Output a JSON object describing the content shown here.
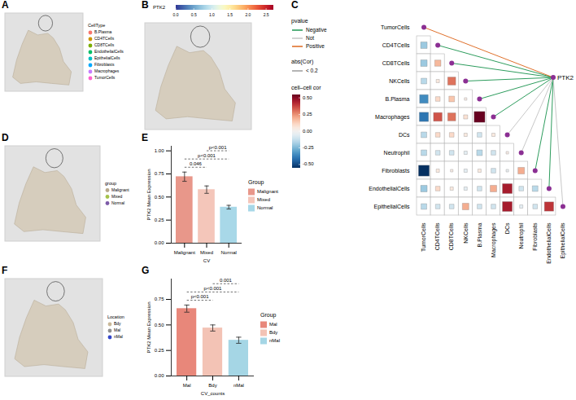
{
  "chart_data": [
    {
      "panel": "A",
      "type": "spatial",
      "legend_title": "CellType",
      "legend": "right",
      "categories": [
        "B.Plasma",
        "CD4TCells",
        "CD8TCells",
        "EndothelialCells",
        "EpithelialCells",
        "Fibroblasts",
        "Macrophages",
        "TumorCells"
      ],
      "colors": [
        "#F8766D",
        "#CD9600",
        "#7CAE00",
        "#00BE67",
        "#00BFC4",
        "#00A9FF",
        "#C77CFF",
        "#FF61CC"
      ]
    },
    {
      "panel": "B",
      "type": "spatial",
      "legend": "top",
      "colorbar_title": "PTK2",
      "colorbar_range": [
        0,
        2.7
      ],
      "colorbar_ticks": [
        {
          "value": 0,
          "label": "0.0"
        },
        {
          "value": 0.5,
          "label": "0.5"
        },
        {
          "value": 1,
          "label": "1.0"
        },
        {
          "value": 1.5,
          "label": "1.5"
        },
        {
          "value": 2,
          "label": "2.0"
        },
        {
          "value": 2.5,
          "label": "2.5"
        }
      ]
    },
    {
      "panel": "C",
      "type": "heatmap",
      "legend": "left",
      "target": "PTK2",
      "color": "#8b2f93",
      "rows": [
        "TumorCells",
        "CD4TCells",
        "CD8TCells",
        "NKCells",
        "B.Plasma",
        "Macrophages",
        "DCs",
        "Neutrophil",
        "Fibroblasts",
        "EndothelialCells",
        "EpithelialCells"
      ],
      "columns": [
        "TumorCells",
        "CD4TCells",
        "CD8TCells",
        "NKCells",
        "B.Plasma",
        "Macrophages",
        "DCs",
        "Neutrophil",
        "Fibroblasts",
        "EndothelialCells",
        "EpithelialCells"
      ],
      "cells": [
        [],
        [
          -0.2
        ],
        [
          -0.2,
          0.18
        ],
        [
          -0.15,
          0.05,
          0.3
        ],
        [
          -0.35,
          0.1,
          0.15,
          0.03
        ],
        [
          -0.4,
          0.35,
          0.3,
          0.08,
          0.55
        ],
        [
          -0.15,
          0.1,
          0.1,
          0.05,
          -0.1,
          0.05
        ],
        [
          -0.15,
          -0.1,
          -0.1,
          -0.05,
          -0.15,
          -0.1,
          0.03
        ],
        [
          -0.55,
          0.05,
          0.03,
          -0.05,
          0.05,
          -0.1,
          -0.03,
          0.2
        ],
        [
          -0.2,
          0.1,
          0.05,
          -0.05,
          -0.1,
          0.2,
          0.45,
          -0.1,
          -0.15
        ],
        [
          -0.15,
          -0.1,
          -0.1,
          0.2,
          -0.1,
          -0.1,
          0.45,
          -0.05,
          -0.1,
          0.4
        ]
      ],
      "links": [
        {
          "to": "TumorCells",
          "pvalue": "Positive"
        },
        {
          "to": "CD4TCells",
          "pvalue": "Negative"
        },
        {
          "to": "CD8TCells",
          "pvalue": "Negative"
        },
        {
          "to": "NKCells",
          "pvalue": "Negative"
        },
        {
          "to": "B.Plasma",
          "pvalue": "Negative"
        },
        {
          "to": "Macrophages",
          "pvalue": "Negative"
        },
        {
          "to": "DCs",
          "pvalue": "Not"
        },
        {
          "to": "Neutrophil",
          "pvalue": "Not"
        },
        {
          "to": "Fibroblasts",
          "pvalue": "Negative"
        },
        {
          "to": "EndothelialCells",
          "pvalue": "Negative"
        },
        {
          "to": "EpithelialCells",
          "pvalue": "Not"
        }
      ],
      "link_legend_title": "pvalue",
      "link_legend": [
        {
          "name": "Negative",
          "color": "#2e9d5e"
        },
        {
          "name": "Not",
          "color": "#c8c8c8"
        },
        {
          "name": "Positive",
          "color": "#e0712c"
        }
      ],
      "width_legend_title": "abs(Cor)",
      "width_legend": [
        "< 0.2"
      ],
      "colorbar_title": "cell–cell cor",
      "colorbar_range": [
        -0.55,
        0.55
      ],
      "colorbar_ticks": [
        {
          "value": 0.5,
          "label": "0.50"
        },
        {
          "value": 0.25,
          "label": "0.25"
        },
        {
          "value": 0,
          "label": "0.00"
        },
        {
          "value": -0.25,
          "label": "-0.25"
        },
        {
          "value": -0.5,
          "label": "-0.50"
        }
      ]
    },
    {
      "panel": "D",
      "type": "spatial",
      "legend_title": "group",
      "legend": "right",
      "categories": [
        "Malignant",
        "Mixed",
        "Normal"
      ],
      "colors": [
        "#b8a88a",
        "#a5c24a",
        "#7d5ca8"
      ]
    },
    {
      "panel": "E",
      "type": "bar",
      "legend": "right",
      "legend_title": "Group",
      "categories": [
        "Malignant",
        "Mixed",
        "Normal"
      ],
      "values": [
        0.72,
        0.58,
        0.39
      ],
      "errors": [
        0.05,
        0.04,
        0.02
      ],
      "colors": [
        "#E8978A",
        "#F4C6BA",
        "#A8D8E8"
      ],
      "x_label": "CV",
      "y_label": "PTK2 Mean Expression",
      "ylim": [
        0,
        1.05
      ],
      "yticks": [
        {
          "value": 0,
          "label": "0.00"
        },
        {
          "value": 0.25,
          "label": "0.25"
        },
        {
          "value": 0.5,
          "label": "0.50"
        },
        {
          "value": 0.75,
          "label": "0.75"
        },
        {
          "value": 1,
          "label": "1.00"
        }
      ],
      "comparisons": [
        {
          "pair": [
            "Malignant",
            "Mixed"
          ],
          "label": "0.046"
        },
        {
          "pair": [
            "Malignant",
            "Normal"
          ],
          "label": "p<0.001"
        },
        {
          "pair": [
            "Mixed",
            "Normal"
          ],
          "label": "p<0.001"
        }
      ]
    },
    {
      "panel": "F",
      "type": "spatial",
      "legend_title": "Location",
      "legend": "right",
      "categories": [
        "Bdy",
        "Mal",
        "nMal"
      ],
      "colors": [
        "#c9b99a",
        "#8f8f8f",
        "#3346c9"
      ]
    },
    {
      "panel": "G",
      "type": "bar",
      "legend": "right",
      "legend_title": "Group",
      "categories": [
        "Mal",
        "Bdy",
        "nMal"
      ],
      "values": [
        0.66,
        0.47,
        0.35
      ],
      "errors": [
        0.035,
        0.03,
        0.03
      ],
      "colors": [
        "#E8877A",
        "#F3C3B5",
        "#A5D6E5"
      ],
      "x_label": "CV_counts",
      "y_label": "PTK2 Mean Expression",
      "ylim": [
        0,
        0.95
      ],
      "yticks": [
        {
          "value": 0,
          "label": "0.00"
        },
        {
          "value": 0.25,
          "label": "0.25"
        },
        {
          "value": 0.5,
          "label": "0.50"
        },
        {
          "value": 0.75,
          "label": "0.75"
        }
      ],
      "comparisons": [
        {
          "pair": [
            "Mal",
            "Bdy"
          ],
          "label": "p<0.001"
        },
        {
          "pair": [
            "Mal",
            "nMal"
          ],
          "label": "p<0.001"
        },
        {
          "pair": [
            "Bdy",
            "nMal"
          ],
          "label": "0.001"
        }
      ]
    }
  ]
}
